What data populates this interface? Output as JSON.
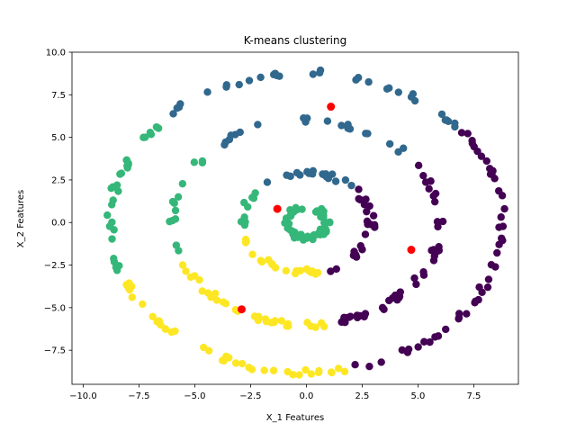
{
  "chart_data": {
    "type": "scatter",
    "title": "K-means clustering",
    "xlabel": "X_1 Features",
    "ylabel": "X_2 Features",
    "xlim": [
      -10.5,
      9.5
    ],
    "ylim": [
      -9.5,
      10.0
    ],
    "xticks": [
      -10.0,
      -7.5,
      -5.0,
      -2.5,
      0.0,
      2.5,
      5.0,
      7.5
    ],
    "xtick_labels": [
      "−10.0",
      "−7.5",
      "−5.0",
      "−2.5",
      "0.0",
      "2.5",
      "5.0",
      "7.5"
    ],
    "yticks": [
      -7.5,
      -5.0,
      -2.5,
      0.0,
      2.5,
      5.0,
      7.5,
      10.0
    ],
    "ytick_labels": [
      "−7.5",
      "−5.0",
      "−2.5",
      "0.0",
      "2.5",
      "5.0",
      "7.5",
      "10.0"
    ],
    "grid": false,
    "rings": [
      {
        "radius": 0.9,
        "point_count": 60
      },
      {
        "radius": 2.9,
        "point_count": 70
      },
      {
        "radius": 6.0,
        "point_count": 110
      },
      {
        "radius": 8.8,
        "point_count": 150
      }
    ],
    "clusters": [
      {
        "color": "#440154",
        "angle_from": -78,
        "angle_to": 40
      },
      {
        "color": "#31688e",
        "angle_from": 40,
        "angle_to": 138
      },
      {
        "color": "#35b779",
        "angle_from": 138,
        "angle_to": 200
      },
      {
        "color": "#fde725",
        "angle_from": 200,
        "angle_to": 282
      }
    ],
    "inner_cluster_color": "#35b779",
    "centroids": {
      "color": "#ff0000",
      "points": [
        {
          "x": 1.1,
          "y": 6.8
        },
        {
          "x": -1.3,
          "y": 0.8
        },
        {
          "x": 4.7,
          "y": -1.6
        },
        {
          "x": -2.9,
          "y": -5.1
        }
      ]
    }
  }
}
